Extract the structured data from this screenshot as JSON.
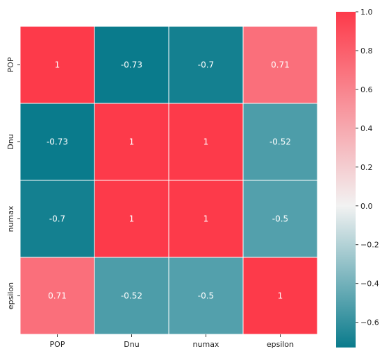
{
  "chart_data": {
    "type": "heatmap",
    "title": "",
    "xlabel": "",
    "ylabel": "",
    "x_categories": [
      "POP",
      "Dnu",
      "numax",
      "epsilon"
    ],
    "y_categories": [
      "POP",
      "Dnu",
      "numax",
      "epsilon"
    ],
    "values": [
      [
        1,
        -0.73,
        -0.7,
        0.71
      ],
      [
        -0.73,
        1,
        1,
        -0.52
      ],
      [
        -0.7,
        1,
        1,
        -0.5
      ],
      [
        0.71,
        -0.52,
        -0.5,
        1
      ]
    ],
    "annotations": [
      [
        "1",
        "-0.73",
        "-0.7",
        "0.71"
      ],
      [
        "-0.73",
        "1",
        "1",
        "-0.52"
      ],
      [
        "-0.7",
        "1",
        "1",
        "-0.5"
      ],
      [
        "0.71",
        "-0.52",
        "-0.5",
        "1"
      ]
    ],
    "colorbar": {
      "range": [
        -0.73,
        1.0
      ],
      "ticks": [
        1.0,
        0.8,
        0.6,
        0.4,
        0.2,
        0.0,
        -0.2,
        -0.4,
        -0.6
      ],
      "tick_labels": [
        "1.0",
        "0.8",
        "0.6",
        "0.4",
        "0.2",
        "0.0",
        "−0.2",
        "−0.4",
        "−0.6"
      ],
      "colormap": {
        "low": "#0a7b8c",
        "mid": "#f2f2f2",
        "high": "#fd3a4a"
      },
      "placement": "right"
    },
    "grid_line_color": "#ffffff",
    "grid": false
  }
}
